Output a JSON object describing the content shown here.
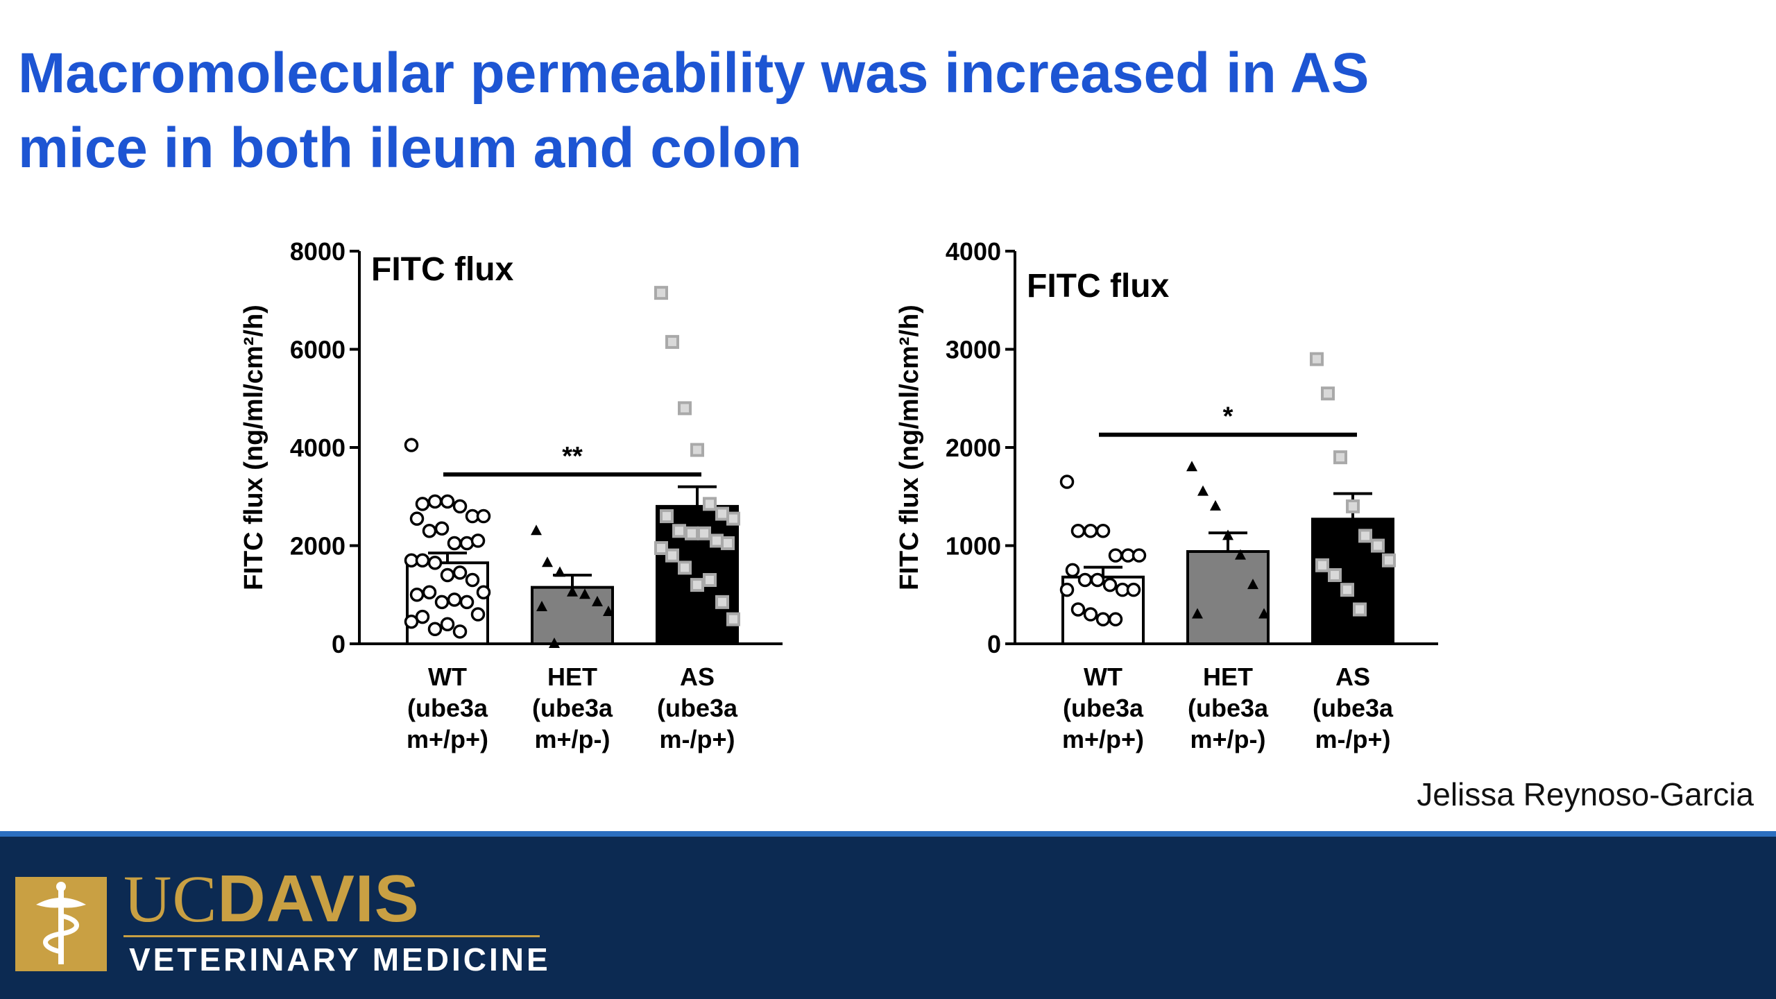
{
  "title": {
    "line1": "Macromolecular permeability was increased in AS",
    "line2": "mice in both ileum and colon"
  },
  "author": "Jelissa Reynoso-Garcia",
  "logo": {
    "uc": "UC",
    "davis": "DAVIS",
    "subtitle": "VETERINARY MEDICINE",
    "emblem_icon": "caduceus-icon"
  },
  "colors": {
    "title": "#1d55d3",
    "footer": "#0c2a52",
    "footer_rule": "#2c6fc0",
    "gold": "#c9a043",
    "wt_bar": "#ffffff",
    "het_bar": "#808080",
    "as_bar": "#000000",
    "as_point": "#a9a9a9"
  },
  "chart_data": [
    {
      "type": "bar",
      "panel_label": "FITC flux",
      "ylabel": "FITC flux (ng/ml/cm²/h)",
      "ylim": [
        0,
        8000
      ],
      "yticks": [
        "0",
        "2000",
        "4000",
        "6000",
        "8000"
      ],
      "categories": [
        [
          "WT",
          "(ube3a",
          "m+/p+)"
        ],
        [
          "HET",
          "(ube3a",
          "m+/p-)"
        ],
        [
          "AS",
          "(ube3a",
          "m-/p+)"
        ]
      ],
      "marker": [
        "open-circle",
        "filled-triangle",
        "gray-square"
      ],
      "means": [
        1650,
        1150,
        2800
      ],
      "sem": [
        200,
        250,
        400
      ],
      "points": [
        [
          4050,
          2850,
          2900,
          2900,
          2800,
          2600,
          2600,
          2550,
          2300,
          2350,
          2050,
          2050,
          2100,
          1700,
          1700,
          1650,
          1400,
          1450,
          1300,
          1050,
          1000,
          1050,
          850,
          900,
          850,
          600,
          450,
          550,
          300,
          400,
          250
        ],
        [
          2300,
          1650,
          1450,
          1050,
          1000,
          850,
          650,
          750,
          0
        ],
        [
          7150,
          6150,
          4800,
          3950,
          2850,
          2650,
          2550,
          2600,
          2300,
          2250,
          2250,
          2100,
          2050,
          1950,
          1800,
          1550,
          1200,
          1300,
          850,
          500
        ]
      ],
      "significance": {
        "from": 0,
        "to": 2,
        "y": 3450,
        "label": "**"
      }
    },
    {
      "type": "bar",
      "panel_label": "FITC flux",
      "ylabel": "FITC flux (ng/ml/cm²/h)",
      "ylim": [
        0,
        4000
      ],
      "yticks": [
        "0",
        "1000",
        "2000",
        "3000",
        "4000"
      ],
      "categories": [
        [
          "WT",
          "(ube3a",
          "m+/p+)"
        ],
        [
          "HET",
          "(ube3a",
          "m+/p-)"
        ],
        [
          "AS",
          "(ube3a",
          "m-/p+)"
        ]
      ],
      "marker": [
        "open-circle",
        "filled-triangle",
        "gray-square"
      ],
      "means": [
        680,
        940,
        1270
      ],
      "sem": [
        100,
        190,
        260
      ],
      "points": [
        [
          1650,
          1150,
          1150,
          1150,
          900,
          900,
          900,
          750,
          650,
          650,
          600,
          550,
          550,
          550,
          350,
          300,
          250,
          250
        ],
        [
          1800,
          1550,
          1400,
          1100,
          900,
          600,
          300,
          300
        ],
        [
          2900,
          2550,
          1900,
          1400,
          1100,
          1000,
          850,
          800,
          700,
          550,
          350
        ]
      ],
      "significance": {
        "from": 0,
        "to": 2,
        "y": 2130,
        "label": "*"
      }
    }
  ]
}
